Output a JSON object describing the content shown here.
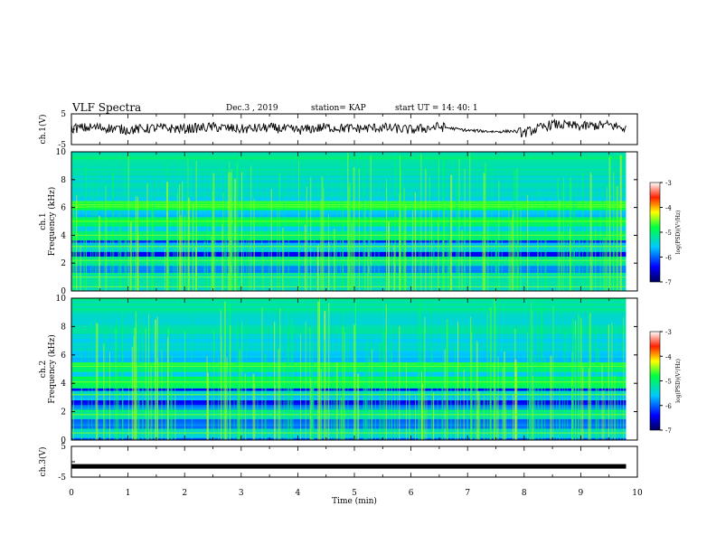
{
  "header": {
    "title": "VLF Spectra",
    "date": "Dec.3 , 2019",
    "station": "station= KAP",
    "start": "start UT = 14: 40: 1"
  },
  "chart_data": [
    {
      "type": "line",
      "panel": "ch1-waveform",
      "ylabel": "ch.1(V)",
      "ylim": [
        -5,
        5
      ],
      "xlim": [
        0,
        10
      ],
      "yticks": [
        "5",
        "-5"
      ],
      "x": [
        0.0,
        0.5,
        1.0,
        1.5,
        2.0,
        2.5,
        3.0,
        3.5,
        4.0,
        4.5,
        5.0,
        5.5,
        6.0,
        6.5,
        7.0,
        7.5,
        7.8,
        8.0,
        8.5,
        9.0,
        9.5,
        9.8
      ],
      "y": [
        0.3,
        0.6,
        -0.2,
        0.4,
        0.1,
        0.7,
        0.0,
        0.5,
        -0.3,
        0.6,
        0.2,
        0.5,
        -0.2,
        0.8,
        -0.4,
        -0.8,
        -0.6,
        -1.2,
        1.6,
        0.9,
        1.4,
        0.2
      ]
    },
    {
      "type": "heatmap",
      "panel": "ch1-spectrogram",
      "ylabel": "Frequency (kHz)",
      "channel_label": "ch.1",
      "xlim": [
        0,
        10
      ],
      "ylim": [
        0,
        10
      ],
      "yticks": [
        "0",
        "2",
        "4",
        "6",
        "8",
        "10"
      ],
      "colorbar": {
        "label": "log(PSD)(V²/Hz)",
        "ticks": [
          "-3",
          "-4",
          "-5",
          "-6",
          "-7"
        ],
        "range": [
          -7,
          -3
        ]
      },
      "bands_khz": [
        0.3,
        1.0,
        2.2,
        3.2,
        4.0,
        5.0,
        6.2
      ],
      "data_end_min": 9.8
    },
    {
      "type": "heatmap",
      "panel": "ch2-spectrogram",
      "ylabel": "Frequency (kHz)",
      "channel_label": "ch.2",
      "xlim": [
        0,
        10
      ],
      "ylim": [
        0,
        10
      ],
      "yticks": [
        "0",
        "2",
        "4",
        "6",
        "8",
        "10"
      ],
      "colorbar": {
        "label": "log(PSD)(V²/Hz)",
        "ticks": [
          "-3",
          "-4",
          "-5",
          "-6",
          "-7"
        ],
        "range": [
          -7,
          -3
        ]
      },
      "bands_khz": [
        0.5,
        1.8,
        3.2,
        4.1,
        5.2
      ],
      "data_end_min": 9.8
    },
    {
      "type": "line",
      "panel": "ch3-waveform",
      "ylabel": "ch.3(V)",
      "ylim": [
        -5,
        5
      ],
      "xlim": [
        0,
        10
      ],
      "yticks": [
        "5",
        "-5"
      ],
      "x": [
        0,
        9.8
      ],
      "y": [
        -1.5,
        -1.5
      ]
    }
  ],
  "xaxis": {
    "label": "Time (min)",
    "ticks": [
      "0",
      "1",
      "2",
      "3",
      "4",
      "5",
      "6",
      "7",
      "8",
      "9",
      "10"
    ]
  },
  "colors": {
    "axis": "#000000",
    "line": "#000000",
    "background": "#ffffff"
  }
}
